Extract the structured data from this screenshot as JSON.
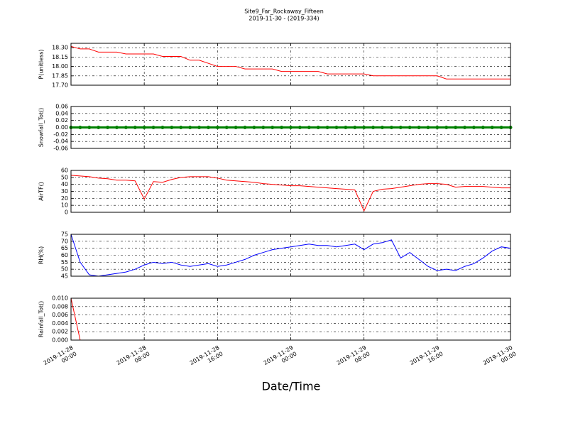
{
  "figure": {
    "title": "Site9_Far_Rockaway_Fifteen",
    "subtitle": "2019-11-30 - (2019-334)",
    "xlabel": "Date/Time",
    "grid": true,
    "xlim": [
      "2019-11-28 00:00",
      "2019-11-30 00:00"
    ],
    "xticks": [
      "2019-11-28 00:00",
      "2019-11-28 08:00",
      "2019-11-28 16:00",
      "2019-11-29 00:00",
      "2019-11-29 08:00",
      "2019-11-29 16:00",
      "2019-11-30 00:00"
    ],
    "x": [
      "2019-11-28 00:00",
      "2019-11-28 01:00",
      "2019-11-28 02:00",
      "2019-11-28 03:00",
      "2019-11-28 04:00",
      "2019-11-28 05:00",
      "2019-11-28 06:00",
      "2019-11-28 07:00",
      "2019-11-28 08:00",
      "2019-11-28 09:00",
      "2019-11-28 10:00",
      "2019-11-28 11:00",
      "2019-11-28 12:00",
      "2019-11-28 13:00",
      "2019-11-28 14:00",
      "2019-11-28 15:00",
      "2019-11-28 16:00",
      "2019-11-28 17:00",
      "2019-11-28 18:00",
      "2019-11-28 19:00",
      "2019-11-28 20:00",
      "2019-11-28 21:00",
      "2019-11-28 22:00",
      "2019-11-28 23:00",
      "2019-11-29 00:00",
      "2019-11-29 01:00",
      "2019-11-29 02:00",
      "2019-11-29 03:00",
      "2019-11-29 04:00",
      "2019-11-29 05:00",
      "2019-11-29 06:00",
      "2019-11-29 07:00",
      "2019-11-29 08:00",
      "2019-11-29 09:00",
      "2019-11-29 10:00",
      "2019-11-29 11:00",
      "2019-11-29 12:00",
      "2019-11-29 13:00",
      "2019-11-29 14:00",
      "2019-11-29 15:00",
      "2019-11-29 16:00",
      "2019-11-29 17:00",
      "2019-11-29 18:00",
      "2019-11-29 19:00",
      "2019-11-29 20:00",
      "2019-11-29 21:00",
      "2019-11-29 22:00",
      "2019-11-29 23:00",
      "2019-11-30 00:00"
    ]
  },
  "chart_data": [
    {
      "type": "line",
      "ylabel": "P(unitless)",
      "color": "#ff0000",
      "ylim": [
        17.7,
        18.37
      ],
      "yticks": [
        {
          "value": 17.7,
          "label": "17.70"
        },
        17.85,
        {
          "value": 18.0,
          "label": "18.00"
        },
        18.15,
        {
          "value": 18.3,
          "label": "18.30"
        }
      ],
      "values": [
        18.32,
        18.28,
        18.28,
        18.23,
        18.23,
        18.23,
        18.2,
        18.2,
        18.2,
        18.2,
        18.16,
        18.16,
        18.16,
        18.1,
        18.1,
        18.05,
        18.0,
        18.0,
        18.0,
        17.96,
        17.96,
        17.96,
        17.96,
        17.92,
        17.92,
        17.92,
        17.92,
        17.92,
        17.88,
        17.88,
        17.88,
        17.88,
        17.88,
        17.85,
        17.85,
        17.85,
        17.85,
        17.85,
        17.85,
        17.85,
        17.85,
        17.8,
        17.8,
        17.8,
        17.8,
        17.8,
        17.8,
        17.8,
        17.8
      ]
    },
    {
      "type": "line",
      "ylabel": "Snowfall_Tot()",
      "color": "#008000",
      "markers": true,
      "ylim": [
        -0.06,
        0.06
      ],
      "yticks": [
        -0.06,
        -0.04,
        -0.02,
        {
          "value": 0,
          "label": "0.00"
        },
        0.02,
        0.04,
        0.06
      ],
      "values": [
        0,
        0,
        0,
        0,
        0,
        0,
        0,
        0,
        0,
        0,
        0,
        0,
        0,
        0,
        0,
        0,
        0,
        0,
        0,
        0,
        0,
        0,
        0,
        0,
        0,
        0,
        0,
        0,
        0,
        0,
        0,
        0,
        0,
        0,
        0,
        0,
        0,
        0,
        0,
        0,
        0,
        0,
        0,
        0,
        0,
        0,
        0,
        0,
        0
      ]
    },
    {
      "type": "line",
      "ylabel": "AirTF()",
      "color": "#ff0000",
      "ylim": [
        0,
        60
      ],
      "yticks": [
        0,
        10,
        20,
        30,
        40,
        50,
        60
      ],
      "values": [
        53,
        52,
        51,
        49,
        48,
        46,
        46,
        45,
        19,
        44,
        43,
        47,
        50,
        51,
        51,
        51,
        49,
        46,
        45,
        44,
        43,
        41,
        40,
        39,
        38,
        38,
        37,
        36,
        35,
        34,
        33,
        32,
        2,
        30,
        33,
        34,
        36,
        38,
        40,
        41,
        41,
        40,
        36,
        37,
        37,
        37,
        36,
        35,
        35
      ]
    },
    {
      "type": "line",
      "ylabel": "RH(%)",
      "color": "#0000ff",
      "ylim": [
        45,
        75
      ],
      "yticks": [
        45,
        50,
        55,
        60,
        65,
        70,
        75
      ],
      "values": [
        75,
        55,
        46,
        45,
        46,
        47,
        48,
        50,
        53,
        55,
        54,
        55,
        53,
        52,
        53,
        54,
        52,
        53,
        55,
        57,
        60,
        62,
        64,
        65,
        66,
        67,
        68,
        67,
        67,
        66,
        67,
        68,
        64,
        68,
        69,
        71,
        58,
        62,
        57,
        52,
        49,
        50,
        49,
        52,
        54,
        58,
        63,
        66,
        65
      ]
    },
    {
      "type": "line",
      "ylabel": "Rainfall_Tot()",
      "color": "#ff0000",
      "ylim": [
        0,
        0.01
      ],
      "yticks": [
        {
          "value": 0,
          "label": "0.000"
        },
        0.002,
        0.004,
        0.006,
        0.008,
        {
          "value": 0.01,
          "label": "0.010"
        }
      ],
      "values": [
        0.01,
        0,
        0,
        0,
        0,
        0,
        0,
        0,
        0,
        0,
        0,
        0,
        0,
        0,
        0,
        0,
        0,
        0,
        0,
        0,
        0,
        0,
        0,
        0,
        0,
        0,
        0,
        0,
        0,
        0,
        0,
        0,
        0,
        0,
        0,
        0,
        0,
        0,
        0,
        0,
        0,
        0,
        0,
        0,
        0,
        0,
        0,
        0,
        0
      ]
    }
  ]
}
